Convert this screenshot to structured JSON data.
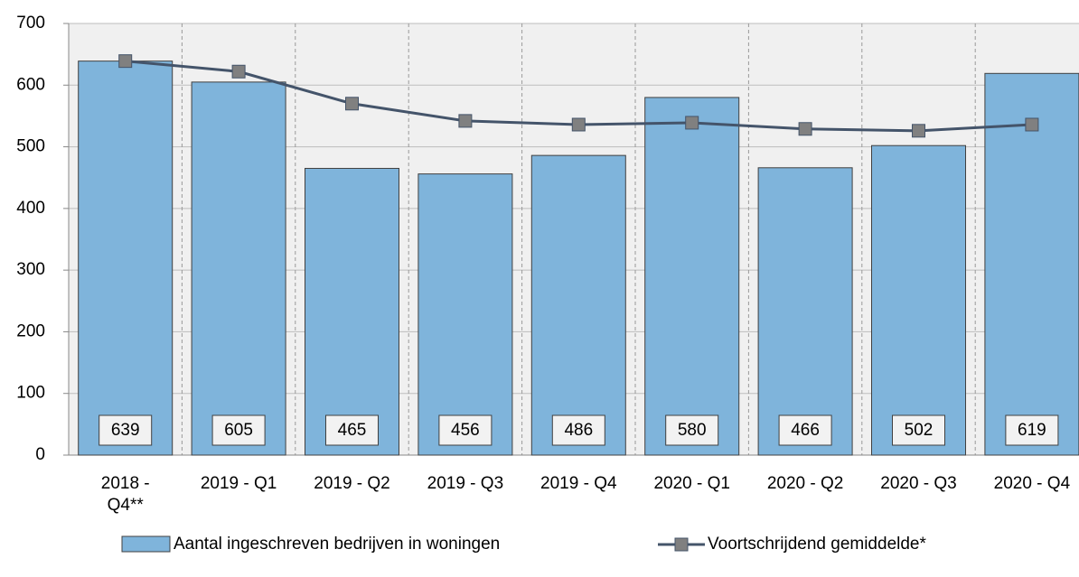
{
  "chart_data": {
    "type": "bar_line",
    "categories": [
      "2018 - Q4**",
      "2019 - Q1",
      "2019 - Q2",
      "2019 - Q3",
      "2019 - Q4",
      "2020 - Q1",
      "2020 - Q2",
      "2020 - Q3",
      "2020 - Q4"
    ],
    "series": [
      {
        "name": "Aantal ingeschreven bedrijven in woningen",
        "type": "bar",
        "color": "#7fb4db",
        "values": [
          639,
          605,
          465,
          456,
          486,
          580,
          466,
          502,
          619
        ]
      },
      {
        "name": "Voortschrijdend gemiddelde*",
        "type": "line",
        "color": "#44546a",
        "marker_color": "#808080",
        "values": [
          639,
          622,
          570,
          542,
          536,
          539,
          529,
          526,
          536
        ]
      }
    ],
    "ylim": [
      0,
      700
    ],
    "yticks": [
      0,
      100,
      200,
      300,
      400,
      500,
      600,
      700
    ],
    "grid": true
  }
}
